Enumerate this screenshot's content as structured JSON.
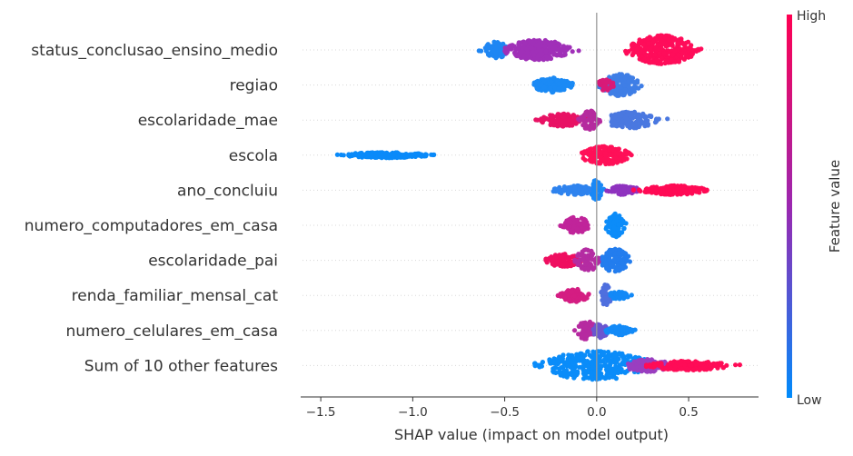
{
  "chart_data": {
    "type": "scatter",
    "subtype": "shap-beeswarm",
    "xlabel": "SHAP value (impact on model output)",
    "ylabel": "",
    "xlim": [
      -1.55,
      0.88
    ],
    "x_ticks": [
      -1.5,
      -1.0,
      -0.5,
      0.0,
      0.5
    ],
    "x_tick_labels": [
      "−1.5",
      "−1.0",
      "−0.5",
      "0.0",
      "0.5"
    ],
    "zero_line": 0.0,
    "grid": false,
    "colorbar": {
      "label": "Feature value",
      "high_label": "High",
      "low_label": "Low",
      "high_color": "#ff0052",
      "mid_color": "#9b27b0",
      "low_color": "#008bfb"
    },
    "features": [
      {
        "name": "status_conclusao_ensino_medio",
        "clusters": [
          {
            "from": -0.65,
            "to": -0.48,
            "center": -0.55,
            "height": 9,
            "color": "#1f86f3",
            "density": 90
          },
          {
            "from": -0.5,
            "to": -0.08,
            "center": -0.32,
            "height": 11,
            "color": "#a030b8",
            "density": 260
          },
          {
            "from": 0.13,
            "to": 0.58,
            "center": 0.35,
            "height": 16,
            "color": "#ff0d5a",
            "density": 320
          }
        ]
      },
      {
        "name": "regiao",
        "clusters": [
          {
            "from": -0.38,
            "to": -0.13,
            "center": -0.24,
            "height": 8,
            "color": "#1b8af5",
            "density": 130
          },
          {
            "from": 0.01,
            "to": 0.26,
            "center": 0.13,
            "height": 12,
            "color": "#3f7ee6",
            "density": 180
          },
          {
            "from": 0.01,
            "to": 0.13,
            "center": 0.05,
            "height": 6,
            "color": "#d81a78",
            "density": 45
          }
        ]
      },
      {
        "name": "escolaridade_mae",
        "clusters": [
          {
            "from": -0.35,
            "to": -0.05,
            "center": -0.18,
            "height": 7,
            "color": "#e81264",
            "density": 110
          },
          {
            "from": -0.1,
            "to": 0.02,
            "center": -0.04,
            "height": 11,
            "color": "#b52a9e",
            "density": 80
          },
          {
            "from": 0.08,
            "to": 0.43,
            "center": 0.18,
            "height": 9,
            "color": "#4a78e0",
            "density": 160
          }
        ]
      },
      {
        "name": "escola",
        "clusters": [
          {
            "from": -1.43,
            "to": -0.88,
            "center": -1.15,
            "height": 3,
            "color": "#0a8af9",
            "density": 240
          },
          {
            "from": -0.08,
            "to": 0.26,
            "center": 0.05,
            "height": 10,
            "color": "#ff1058",
            "density": 170
          }
        ]
      },
      {
        "name": "ano_concluiu",
        "clusters": [
          {
            "from": -0.3,
            "to": -0.02,
            "center": -0.12,
            "height": 5,
            "color": "#2f83ee",
            "density": 90
          },
          {
            "from": -0.03,
            "to": 0.04,
            "center": 0.0,
            "height": 12,
            "color": "#1a88f6",
            "density": 60
          },
          {
            "from": 0.04,
            "to": 0.25,
            "center": 0.15,
            "height": 5,
            "color": "#8f33bf",
            "density": 70
          },
          {
            "from": 0.2,
            "to": 0.61,
            "center": 0.42,
            "height": 5,
            "color": "#ff0a55",
            "density": 200
          }
        ]
      },
      {
        "name": "numero_computadores_em_casa",
        "clusters": [
          {
            "from": -0.22,
            "to": -0.04,
            "center": -0.11,
            "height": 9,
            "color": "#c0249a",
            "density": 100
          },
          {
            "from": 0.05,
            "to": 0.17,
            "center": 0.1,
            "height": 13,
            "color": "#0c8cf9",
            "density": 120
          }
        ]
      },
      {
        "name": "escolaridade_pai",
        "clusters": [
          {
            "from": -0.3,
            "to": -0.08,
            "center": -0.18,
            "height": 7,
            "color": "#ef0f60",
            "density": 100
          },
          {
            "from": -0.12,
            "to": 0.03,
            "center": -0.05,
            "height": 12,
            "color": "#b42ca2",
            "density": 80
          },
          {
            "from": 0.03,
            "to": 0.21,
            "center": 0.1,
            "height": 13,
            "color": "#237dee",
            "density": 150
          }
        ]
      },
      {
        "name": "renda_familiar_mensal_cat",
        "clusters": [
          {
            "from": -0.22,
            "to": -0.04,
            "center": -0.12,
            "height": 7,
            "color": "#d41d82",
            "density": 90
          },
          {
            "from": 0.02,
            "to": 0.09,
            "center": 0.05,
            "height": 12,
            "color": "#4f6fde",
            "density": 60
          },
          {
            "from": 0.07,
            "to": 0.22,
            "center": 0.12,
            "height": 4,
            "color": "#1389f7",
            "density": 50
          }
        ]
      },
      {
        "name": "numero_celulares_em_casa",
        "clusters": [
          {
            "from": -0.13,
            "to": 0.02,
            "center": -0.05,
            "height": 10,
            "color": "#b62aa0",
            "density": 70
          },
          {
            "from": -0.02,
            "to": 0.08,
            "center": 0.02,
            "height": 8,
            "color": "#6a56d0",
            "density": 50
          },
          {
            "from": 0.05,
            "to": 0.23,
            "center": 0.12,
            "height": 5,
            "color": "#138af7",
            "density": 70
          }
        ]
      },
      {
        "name": "Sum of 10 other features",
        "clusters": [
          {
            "from": -0.43,
            "to": 0.28,
            "center": 0.0,
            "height": 16,
            "color": "#0a8cf9",
            "density": 340
          },
          {
            "from": 0.17,
            "to": 0.47,
            "center": 0.28,
            "height": 7,
            "color": "#9a3ec0",
            "density": 110
          },
          {
            "from": 0.25,
            "to": 0.78,
            "center": 0.5,
            "height": 5,
            "color": "#ff0c57",
            "density": 190
          }
        ]
      }
    ]
  }
}
